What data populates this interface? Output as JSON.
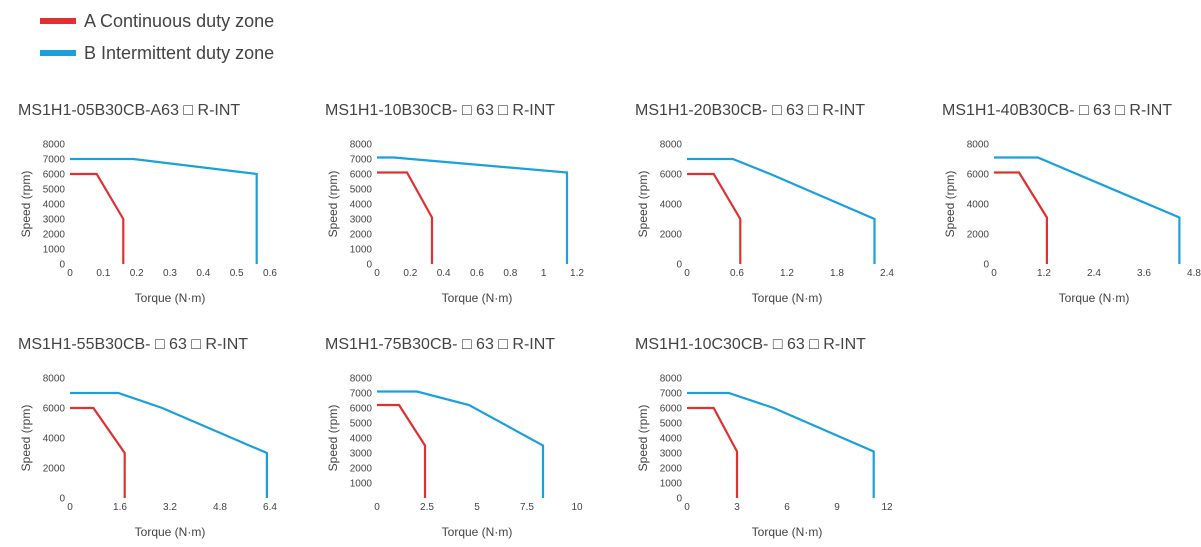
{
  "legend": {
    "items": [
      {
        "label": "A Continuous duty zone",
        "color": "#e03030"
      },
      {
        "label": "B Intermittent duty zone",
        "color": "#1aa0dc"
      }
    ]
  },
  "chart_data": [
    {
      "type": "line",
      "title": "MS1H1-05B30CB-A63 □ R-INT",
      "xlabel": "Torque (N·m)",
      "ylabel": "Speed (rpm)",
      "xlim": [
        0,
        0.6
      ],
      "ylim": [
        0,
        8000
      ],
      "xticks": [
        "0",
        "0.1",
        "0.2",
        "0.3",
        "0.4",
        "0.5",
        "0.6"
      ],
      "yticks": [
        "0",
        "1000",
        "2000",
        "3000",
        "4000",
        "5000",
        "6000",
        "7000",
        "8000"
      ],
      "series": [
        {
          "name": "A Continuous duty zone",
          "color": "#e03030",
          "x": [
            0,
            0.08,
            0.16,
            0.16
          ],
          "y": [
            6000,
            6000,
            3000,
            0
          ]
        },
        {
          "name": "B Intermittent duty zone",
          "color": "#1aa0dc",
          "x": [
            0,
            0.19,
            0.56,
            0.56
          ],
          "y": [
            7000,
            7000,
            6000,
            0
          ]
        }
      ]
    },
    {
      "type": "line",
      "title": "MS1H1-10B30CB- □ 63 □ R-INT",
      "xlabel": "Torque (N·m)",
      "ylabel": "Speed (rpm)",
      "xlim": [
        0,
        1.2
      ],
      "ylim": [
        0,
        8000
      ],
      "xticks": [
        "0",
        "0.2",
        "0.4",
        "0.6",
        "0.8",
        "1",
        "1.2"
      ],
      "yticks": [
        "0",
        "1000",
        "2000",
        "3000",
        "4000",
        "5000",
        "6000",
        "7000",
        "8000"
      ],
      "series": [
        {
          "name": "A Continuous duty zone",
          "color": "#e03030",
          "x": [
            0,
            0.18,
            0.33,
            0.33
          ],
          "y": [
            6100,
            6100,
            3100,
            0
          ]
        },
        {
          "name": "B Intermittent duty zone",
          "color": "#1aa0dc",
          "x": [
            0,
            0.1,
            1.14,
            1.14
          ],
          "y": [
            7100,
            7100,
            6100,
            0
          ]
        }
      ]
    },
    {
      "type": "line",
      "title": "MS1H1-20B30CB- □ 63 □ R-INT",
      "xlabel": "Torque (N·m)",
      "ylabel": "Speed (rpm)",
      "xlim": [
        0,
        2.4
      ],
      "ylim": [
        0,
        8000
      ],
      "xticks": [
        "0",
        "0.6",
        "1.2",
        "1.8",
        "2.4"
      ],
      "yticks": [
        "0",
        "2000",
        "4000",
        "6000",
        "8000"
      ],
      "series": [
        {
          "name": "A Continuous duty zone",
          "color": "#e03030",
          "x": [
            0,
            0.32,
            0.64,
            0.64
          ],
          "y": [
            6000,
            6000,
            3000,
            0
          ]
        },
        {
          "name": "B Intermittent duty zone",
          "color": "#1aa0dc",
          "x": [
            0,
            0.55,
            1.0,
            2.25,
            2.25
          ],
          "y": [
            7000,
            7000,
            6000,
            3000,
            0
          ]
        }
      ]
    },
    {
      "type": "line",
      "title": "MS1H1-40B30CB- □ 63 □ R-INT",
      "xlabel": "Torque (N·m)",
      "ylabel": "Speed (rpm)",
      "xlim": [
        0,
        4.8
      ],
      "ylim": [
        0,
        8000
      ],
      "xticks": [
        "0",
        "1.2",
        "2.4",
        "3.6",
        "4.8"
      ],
      "yticks": [
        "0",
        "2000",
        "4000",
        "6000",
        "8000"
      ],
      "series": [
        {
          "name": "A Continuous duty zone",
          "color": "#e03030",
          "x": [
            0,
            0.6,
            1.27,
            1.27
          ],
          "y": [
            6100,
            6100,
            3100,
            0
          ]
        },
        {
          "name": "B Intermittent duty zone",
          "color": "#1aa0dc",
          "x": [
            0,
            1.05,
            4.45,
            4.45
          ],
          "y": [
            7100,
            7100,
            3100,
            0
          ]
        }
      ]
    },
    {
      "type": "line",
      "title": "MS1H1-55B30CB- □ 63 □ R-INT",
      "xlabel": "Torque (N·m)",
      "ylabel": "Speed (rpm)",
      "xlim": [
        0,
        6.4
      ],
      "ylim": [
        0,
        8000
      ],
      "xticks": [
        "0",
        "1.6",
        "3.2",
        "4.8",
        "6.4"
      ],
      "yticks": [
        "0",
        "2000",
        "4000",
        "6000",
        "8000"
      ],
      "series": [
        {
          "name": "A Continuous duty zone",
          "color": "#e03030",
          "x": [
            0,
            0.75,
            1.75,
            1.75
          ],
          "y": [
            6000,
            6000,
            3000,
            0
          ]
        },
        {
          "name": "B Intermittent duty zone",
          "color": "#1aa0dc",
          "x": [
            0,
            1.55,
            2.95,
            6.3,
            6.3
          ],
          "y": [
            7000,
            7000,
            6000,
            3000,
            0
          ]
        }
      ]
    },
    {
      "type": "line",
      "title": "MS1H1-75B30CB- □ 63 □ R-INT",
      "xlabel": "Torque (N·m)",
      "ylabel": "Speed (rpm)",
      "xlim": [
        0,
        10
      ],
      "ylim": [
        0,
        8000
      ],
      "xticks": [
        "0",
        "2.5",
        "5",
        "7.5",
        "10"
      ],
      "yticks": [
        "1000",
        "2000",
        "3000",
        "4000",
        "5000",
        "6000",
        "7000",
        "8000"
      ],
      "series": [
        {
          "name": "A Continuous duty zone",
          "color": "#e03030",
          "x": [
            0,
            1.1,
            2.4,
            2.4
          ],
          "y": [
            6200,
            6200,
            3500,
            0
          ]
        },
        {
          "name": "B Intermittent duty zone",
          "color": "#1aa0dc",
          "x": [
            0,
            2.0,
            4.6,
            8.3,
            8.3
          ],
          "y": [
            7100,
            7100,
            6200,
            3500,
            0
          ]
        }
      ]
    },
    {
      "type": "line",
      "title": "MS1H1-10C30CB- □ 63 □ R-INT",
      "xlabel": "Torque (N·m)",
      "ylabel": "Speed (rpm)",
      "xlim": [
        0,
        12
      ],
      "ylim": [
        0,
        8000
      ],
      "xticks": [
        "0",
        "3",
        "6",
        "9",
        "12"
      ],
      "yticks": [
        "0",
        "1000",
        "2000",
        "3000",
        "4000",
        "5000",
        "6000",
        "7000",
        "8000"
      ],
      "series": [
        {
          "name": "A Continuous duty zone",
          "color": "#e03030",
          "x": [
            0,
            1.6,
            3.0,
            3.0
          ],
          "y": [
            6000,
            6000,
            3100,
            0
          ]
        },
        {
          "name": "B Intermittent duty zone",
          "color": "#1aa0dc",
          "x": [
            0,
            2.5,
            5.2,
            11.2,
            11.2
          ],
          "y": [
            7000,
            7000,
            6000,
            3100,
            0
          ]
        }
      ]
    }
  ]
}
